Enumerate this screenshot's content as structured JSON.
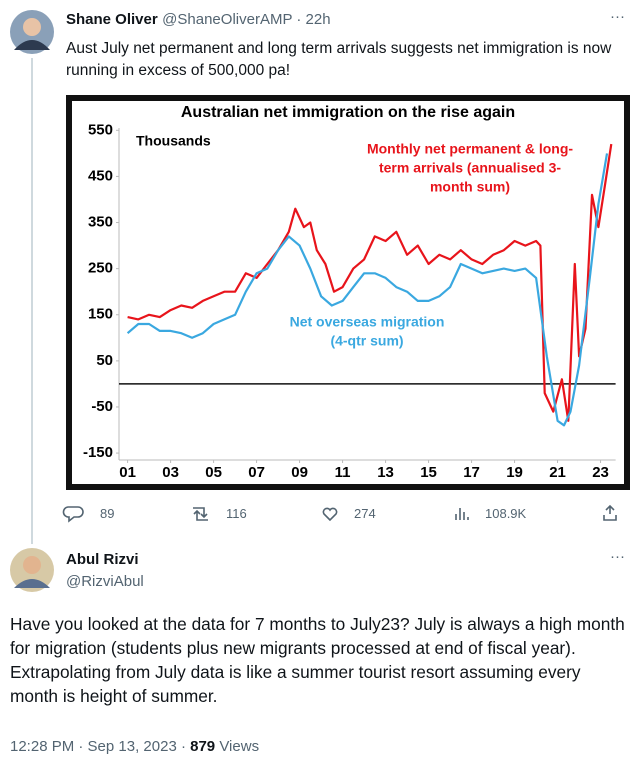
{
  "tweets": [
    {
      "name": "Shane Oliver",
      "meta": "@ShaneOliverAMP · 22h",
      "more": "···",
      "text": "Aust July net permanent and long term arrivals suggests net immigration is now running in excess of 500,000 pa!",
      "replies": "89",
      "retweets": "116",
      "likes": "274",
      "views": "108.9K"
    },
    {
      "name": "Abul Rizvi",
      "handle": "@RizviAbul",
      "more": "···",
      "text": "Have you looked at the data for 7 months to July23? July is always a high month for migration (students plus new migrants processed at end of fiscal year). Extrapolating from July data is like a summer tourist resort assuming every month is height of summer.",
      "timestamp": "12:28 PM · Sep 13, 2023 ·",
      "views": "879",
      "views_label": "Views"
    }
  ],
  "chart_data": {
    "type": "line",
    "title": "Australian net immigration on the rise again",
    "y_unit_label": "Thousands",
    "xlim": [
      2000.6,
      2023.7
    ],
    "xticks": [
      {
        "value": 2001,
        "label": "01"
      },
      {
        "value": 2003,
        "label": "03"
      },
      {
        "value": 2005,
        "label": "05"
      },
      {
        "value": 2007,
        "label": "07"
      },
      {
        "value": 2009,
        "label": "09"
      },
      {
        "value": 2011,
        "label": "11"
      },
      {
        "value": 2013,
        "label": "13"
      },
      {
        "value": 2015,
        "label": "15"
      },
      {
        "value": 2017,
        "label": "17"
      },
      {
        "value": 2019,
        "label": "19"
      },
      {
        "value": 2021,
        "label": "21"
      },
      {
        "value": 2023,
        "label": "23"
      }
    ],
    "ylim": [
      -165,
      555
    ],
    "yticks": [
      550,
      450,
      350,
      250,
      150,
      50,
      -50,
      -150
    ],
    "series": [
      {
        "name": "Monthly net permanent & long-term arrivals (annualised 3-month sum)",
        "label_lines": [
          "Monthly net permanent & long-",
          "term arrivals (annualised 3-",
          "month sum)"
        ],
        "color": "#e8141b",
        "x": [
          2001.0,
          2001.5,
          2002.0,
          2002.5,
          2003.0,
          2003.5,
          2004.0,
          2004.5,
          2005.0,
          2005.5,
          2006.0,
          2006.5,
          2007.0,
          2007.5,
          2008.0,
          2008.5,
          2008.8,
          2009.2,
          2009.5,
          2009.8,
          2010.2,
          2010.6,
          2011.0,
          2011.5,
          2012.0,
          2012.5,
          2013.0,
          2013.5,
          2014.0,
          2014.5,
          2015.0,
          2015.5,
          2016.0,
          2016.5,
          2017.0,
          2017.5,
          2018.0,
          2018.5,
          2019.0,
          2019.5,
          2020.0,
          2020.2,
          2020.4,
          2020.8,
          2021.2,
          2021.5,
          2021.8,
          2022.0,
          2022.3,
          2022.6,
          2022.9,
          2023.2,
          2023.5
        ],
        "values": [
          145,
          140,
          150,
          145,
          160,
          170,
          165,
          180,
          190,
          200,
          200,
          240,
          230,
          260,
          290,
          330,
          380,
          340,
          350,
          290,
          260,
          200,
          210,
          250,
          270,
          320,
          310,
          330,
          280,
          300,
          260,
          280,
          270,
          290,
          270,
          260,
          280,
          290,
          310,
          300,
          310,
          300,
          -20,
          -60,
          10,
          -80,
          260,
          60,
          120,
          410,
          340,
          430,
          520
        ]
      },
      {
        "name": "Net overseas migration (4-qtr sum)",
        "label_lines": [
          "Net overseas migration",
          "(4-qtr sum)"
        ],
        "color": "#3aa8e0",
        "x": [
          2001.0,
          2001.5,
          2002.0,
          2002.5,
          2003.0,
          2003.5,
          2004.0,
          2004.5,
          2005.0,
          2005.5,
          2006.0,
          2006.5,
          2007.0,
          2007.5,
          2008.0,
          2008.5,
          2009.0,
          2009.5,
          2010.0,
          2010.5,
          2011.0,
          2011.5,
          2012.0,
          2012.5,
          2013.0,
          2013.5,
          2014.0,
          2014.5,
          2015.0,
          2015.5,
          2016.0,
          2016.5,
          2017.0,
          2017.5,
          2018.0,
          2018.5,
          2019.0,
          2019.5,
          2020.0,
          2020.5,
          2021.0,
          2021.3,
          2021.6,
          2022.0,
          2022.5,
          2022.9,
          2023.3
        ],
        "values": [
          110,
          130,
          130,
          115,
          115,
          110,
          100,
          110,
          130,
          140,
          150,
          200,
          240,
          250,
          290,
          320,
          300,
          250,
          190,
          170,
          180,
          210,
          240,
          240,
          230,
          210,
          200,
          180,
          180,
          190,
          210,
          260,
          250,
          240,
          245,
          250,
          245,
          250,
          230,
          60,
          -80,
          -90,
          -60,
          40,
          230,
          390,
          500
        ]
      }
    ]
  }
}
